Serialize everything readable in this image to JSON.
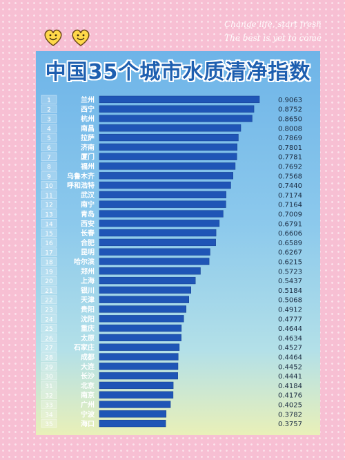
{
  "header": {
    "title": "中国35个城市水质清净指数",
    "slogan_line1": "Change life, start fresh",
    "slogan_line2": "The best is yet to come"
  },
  "colors": {
    "bar": "#1f55b6",
    "bar_dark": "#163f8f",
    "title": "#1e5fb0",
    "background": "#f7bfd3"
  },
  "chart_data": {
    "type": "bar",
    "orientation": "horizontal",
    "title": "中国35个城市水质清净指数",
    "ranks": [
      "1",
      "2",
      "3",
      "4",
      "5",
      "6",
      "7",
      "8",
      "9",
      "10",
      "11",
      "12",
      "13",
      "14",
      "15",
      "16",
      "17",
      "18",
      "19",
      "20",
      "21",
      "22",
      "23",
      "24",
      "25",
      "26",
      "27",
      "28",
      "29",
      "30",
      "31",
      "32",
      "33",
      "34",
      "35"
    ],
    "categories": [
      "兰州",
      "西宁",
      "杭州",
      "南昌",
      "拉萨",
      "济南",
      "厦门",
      "福州",
      "乌鲁木齐",
      "呼和浩特",
      "武汉",
      "南宁",
      "青岛",
      "西安",
      "长春",
      "合肥",
      "昆明",
      "哈尔滨",
      "郑州",
      "上海",
      "银川",
      "天津",
      "贵阳",
      "沈阳",
      "重庆",
      "太原",
      "石家庄",
      "成都",
      "大连",
      "长沙",
      "北京",
      "南京",
      "广州",
      "宁波",
      "海口"
    ],
    "values": [
      0.9063,
      0.8752,
      0.865,
      0.8008,
      0.7869,
      0.7801,
      0.7781,
      0.7692,
      0.7568,
      0.744,
      0.7174,
      0.7164,
      0.7009,
      0.6791,
      0.6606,
      0.6589,
      0.6267,
      0.6215,
      0.5723,
      0.5437,
      0.5184,
      0.5068,
      0.4912,
      0.4777,
      0.4644,
      0.4634,
      0.4527,
      0.4464,
      0.4452,
      0.4441,
      0.4184,
      0.4176,
      0.4025,
      0.3782,
      0.3757
    ],
    "value_labels": [
      "0.9063",
      "0.8752",
      "0.8650",
      "0.8008",
      "0.7869",
      "0.7801",
      "0.7781",
      "0.7692",
      "0.7568",
      "0.7440",
      "0.7174",
      "0.7164",
      "0.7009",
      "0.6791",
      "0.6606",
      "0.6589",
      "0.6267",
      "0.6215",
      "0.5723",
      "0.5437",
      "0.5184",
      "0.5068",
      "0.4912",
      "0.4777",
      "0.4644",
      "0.4634",
      "0.4527",
      "0.4464",
      "0.4452",
      "0.4441",
      "0.4184",
      "0.4176",
      "0.4025",
      "0.3782",
      "0.3757"
    ],
    "xlim": [
      0,
      1
    ],
    "grid": false,
    "legend": "none"
  }
}
